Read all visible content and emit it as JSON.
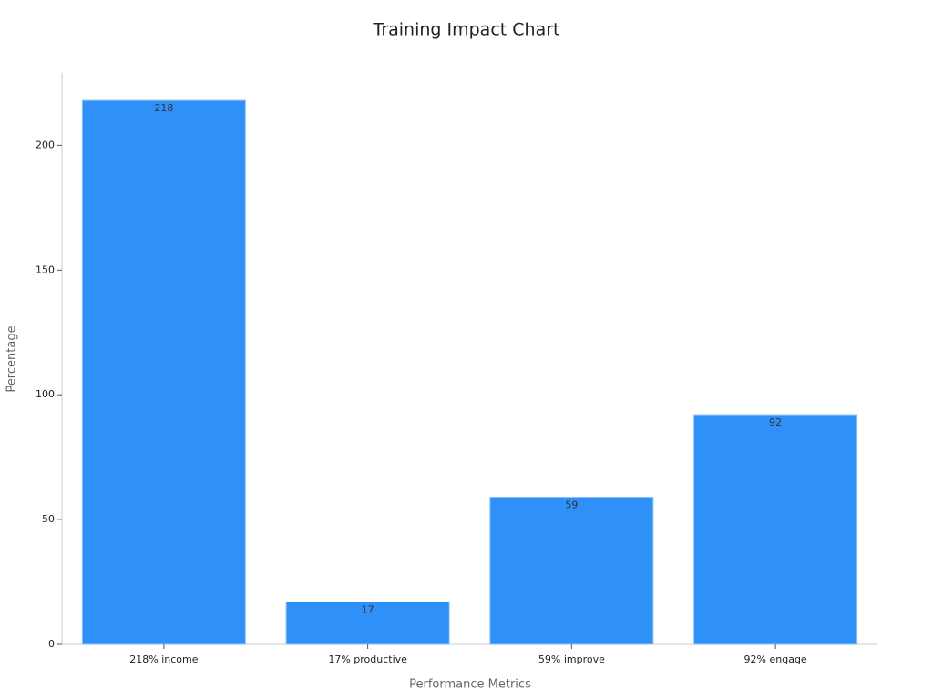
{
  "chart_data": {
    "type": "bar",
    "title": "Training Impact Chart",
    "x_label": "Performance Metrics",
    "y_label": "Percentage",
    "categories": [
      "218% income",
      "17% productive",
      "59% improve",
      "92% engage"
    ],
    "values": [
      218,
      17,
      59,
      92
    ],
    "color": "#2f91f7",
    "ylim": [
      0,
      229
    ],
    "yticks": [
      0,
      50,
      100,
      150,
      200
    ],
    "grid": false
  }
}
